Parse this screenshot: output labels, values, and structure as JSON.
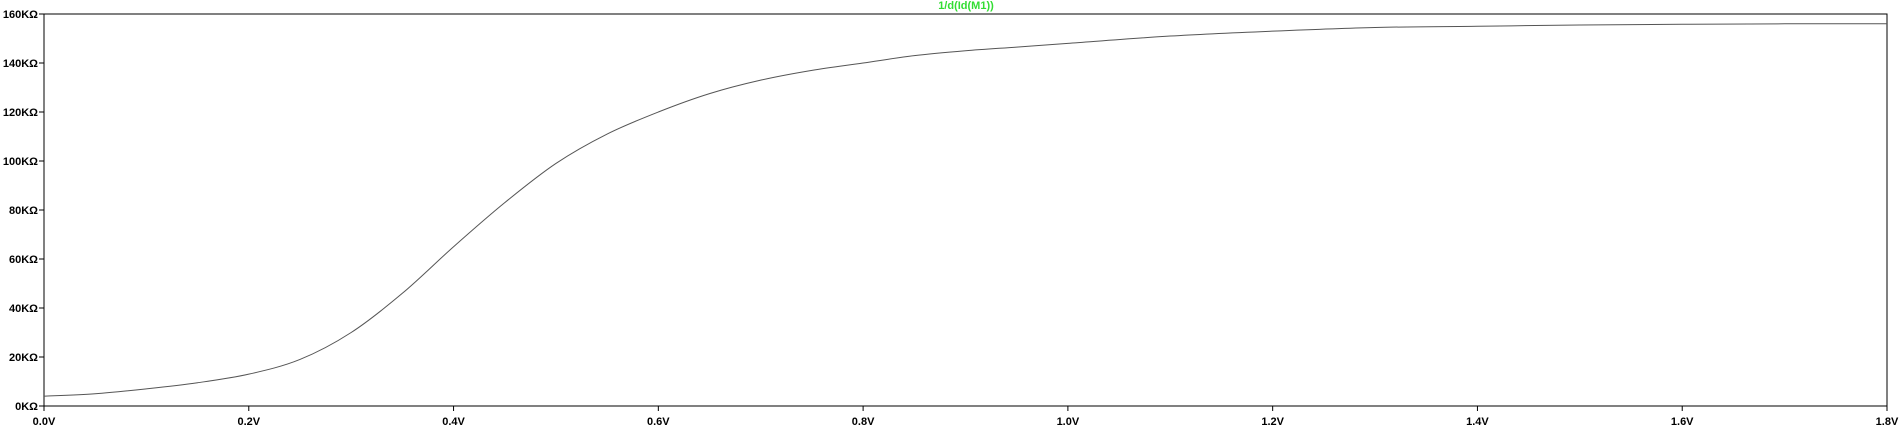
{
  "chart_data": {
    "type": "line",
    "title": "1/d(Id(M1))",
    "x": [
      0.0,
      0.05,
      0.1,
      0.15,
      0.2,
      0.25,
      0.3,
      0.35,
      0.4,
      0.45,
      0.5,
      0.55,
      0.6,
      0.65,
      0.7,
      0.75,
      0.8,
      0.85,
      0.9,
      0.95,
      1.0,
      1.1,
      1.2,
      1.3,
      1.4,
      1.5,
      1.6,
      1.7,
      1.8
    ],
    "series": [
      {
        "values": [
          4000,
          5000,
          7000,
          9500,
          13000,
          19000,
          30000,
          46000,
          65000,
          83000,
          99000,
          111000,
          120000,
          127500,
          133000,
          137000,
          140000,
          143000,
          145000,
          146500,
          148000,
          151000,
          153000,
          154500,
          155000,
          155500,
          155800,
          156000,
          156000
        ]
      }
    ],
    "xlim": [
      0.0,
      1.8
    ],
    "ylim": [
      0,
      160000
    ],
    "x_ticks": [
      "0.0V",
      "0.2V",
      "0.4V",
      "0.6V",
      "0.8V",
      "1.0V",
      "1.2V",
      "1.4V",
      "1.6V",
      "1.8V"
    ],
    "y_ticks": [
      "0KΩ",
      "20KΩ",
      "40KΩ",
      "60KΩ",
      "80KΩ",
      "100KΩ",
      "120KΩ",
      "140KΩ",
      "160KΩ"
    ],
    "grid": false,
    "colors": {
      "title": "#33dd33",
      "line": "#555555",
      "axis": "#000000",
      "text": "#000000"
    }
  }
}
